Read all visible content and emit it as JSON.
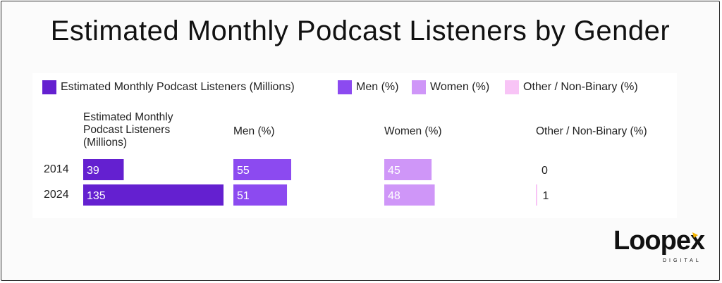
{
  "title": "Estimated Monthly Podcast Listeners by Gender",
  "logo": {
    "brand": "Loopex",
    "tagline": "DIGITAL"
  },
  "legend": [
    {
      "label": "Estimated Monthly Podcast Listeners (Millions)",
      "color": "#6420d0"
    },
    {
      "label": "Men (%)",
      "color": "#8c4af0"
    },
    {
      "label": "Women (%)",
      "color": "#cf96f8"
    },
    {
      "label": "Other / Non-Binary (%)",
      "color": "#f8c4f6"
    }
  ],
  "columns": [
    {
      "header": "Estimated Monthly Podcast Listeners (Millions)",
      "header_lines": [
        "Estimated Monthly",
        "Podcast Listeners",
        "(Millions)"
      ]
    },
    {
      "header": "Men (%)",
      "header_lines": [
        "Men (%)"
      ]
    },
    {
      "header": "Women (%)",
      "header_lines": [
        "Women (%)"
      ]
    },
    {
      "header": "Other / Non-Binary (%)",
      "header_lines": [
        "Other / Non-Binary (%)"
      ]
    }
  ],
  "chart_data": {
    "type": "bar",
    "title": "Estimated Monthly Podcast Listeners by Gender",
    "categories": [
      "2014",
      "2024"
    ],
    "series": [
      {
        "name": "Estimated Monthly Podcast Listeners (Millions)",
        "values": [
          39,
          135
        ],
        "color": "#6420d0"
      },
      {
        "name": "Men (%)",
        "values": [
          55,
          51
        ],
        "color": "#8c4af0"
      },
      {
        "name": "Women (%)",
        "values": [
          45,
          48
        ],
        "color": "#cf96f8"
      },
      {
        "name": "Other / Non-Binary (%)",
        "values": [
          0,
          1
        ],
        "color": "#f8c4f6"
      }
    ],
    "legend_position": "top-left",
    "grid": false
  }
}
